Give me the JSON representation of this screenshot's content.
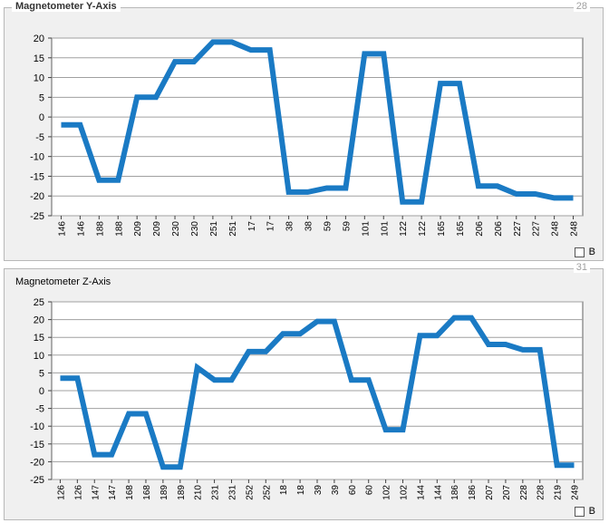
{
  "panel_y": {
    "title": "Magnetometer Y-Axis",
    "number": "28",
    "legend": "B"
  },
  "panel_z": {
    "title": "Magnetometer Z-Axis",
    "number": "31",
    "legend": "B"
  },
  "colors": {
    "line": "#1a7ac4",
    "grid": "#a0a0a0",
    "plot_bg": "#ffffff"
  },
  "chart_data": [
    {
      "type": "line",
      "title": "Magnetometer Y-Axis",
      "ylim": [
        -25,
        20
      ],
      "yticks": [
        20,
        15,
        10,
        5,
        0,
        -5,
        -10,
        -15,
        -20,
        -25
      ],
      "grid": true,
      "categories": [
        "146",
        "146",
        "188",
        "188",
        "209",
        "209",
        "230",
        "230",
        "251",
        "251",
        "17",
        "17",
        "38",
        "38",
        "59",
        "59",
        "101",
        "101",
        "122",
        "122",
        "165",
        "165",
        "206",
        "206",
        "227",
        "227",
        "248",
        "248"
      ],
      "series": [
        {
          "values": [
            -2,
            -2,
            -16,
            -16,
            5,
            5,
            14,
            14,
            19,
            19,
            17,
            17,
            -19,
            -19,
            -18,
            -18,
            16,
            16,
            -21.5,
            -21.5,
            8.5,
            8.5,
            -17.5,
            -17.5,
            -19.5,
            -19.5,
            -20.5,
            -20.5
          ]
        }
      ]
    },
    {
      "type": "line",
      "title": "Magnetometer Z-Axis",
      "ylim": [
        -25,
        25
      ],
      "yticks": [
        25,
        20,
        15,
        10,
        5,
        0,
        -5,
        -10,
        -15,
        -20,
        -25
      ],
      "grid": true,
      "categories": [
        "126",
        "126",
        "147",
        "147",
        "168",
        "168",
        "189",
        "189",
        "210",
        "231",
        "231",
        "252",
        "252",
        "18",
        "18",
        "39",
        "39",
        "60",
        "60",
        "102",
        "102",
        "144",
        "144",
        "186",
        "186",
        "207",
        "207",
        "228",
        "228",
        "219",
        "249"
      ],
      "series": [
        {
          "values": [
            3.5,
            3.5,
            -18,
            -18,
            -6.5,
            -6.5,
            -21.5,
            -21.5,
            6.5,
            3,
            3,
            11,
            11,
            16,
            16,
            19.5,
            19.5,
            3,
            3,
            -11,
            -11,
            15.5,
            15.5,
            20.5,
            20.5,
            13,
            13,
            11.5,
            11.5,
            -21,
            -21
          ]
        }
      ]
    }
  ]
}
